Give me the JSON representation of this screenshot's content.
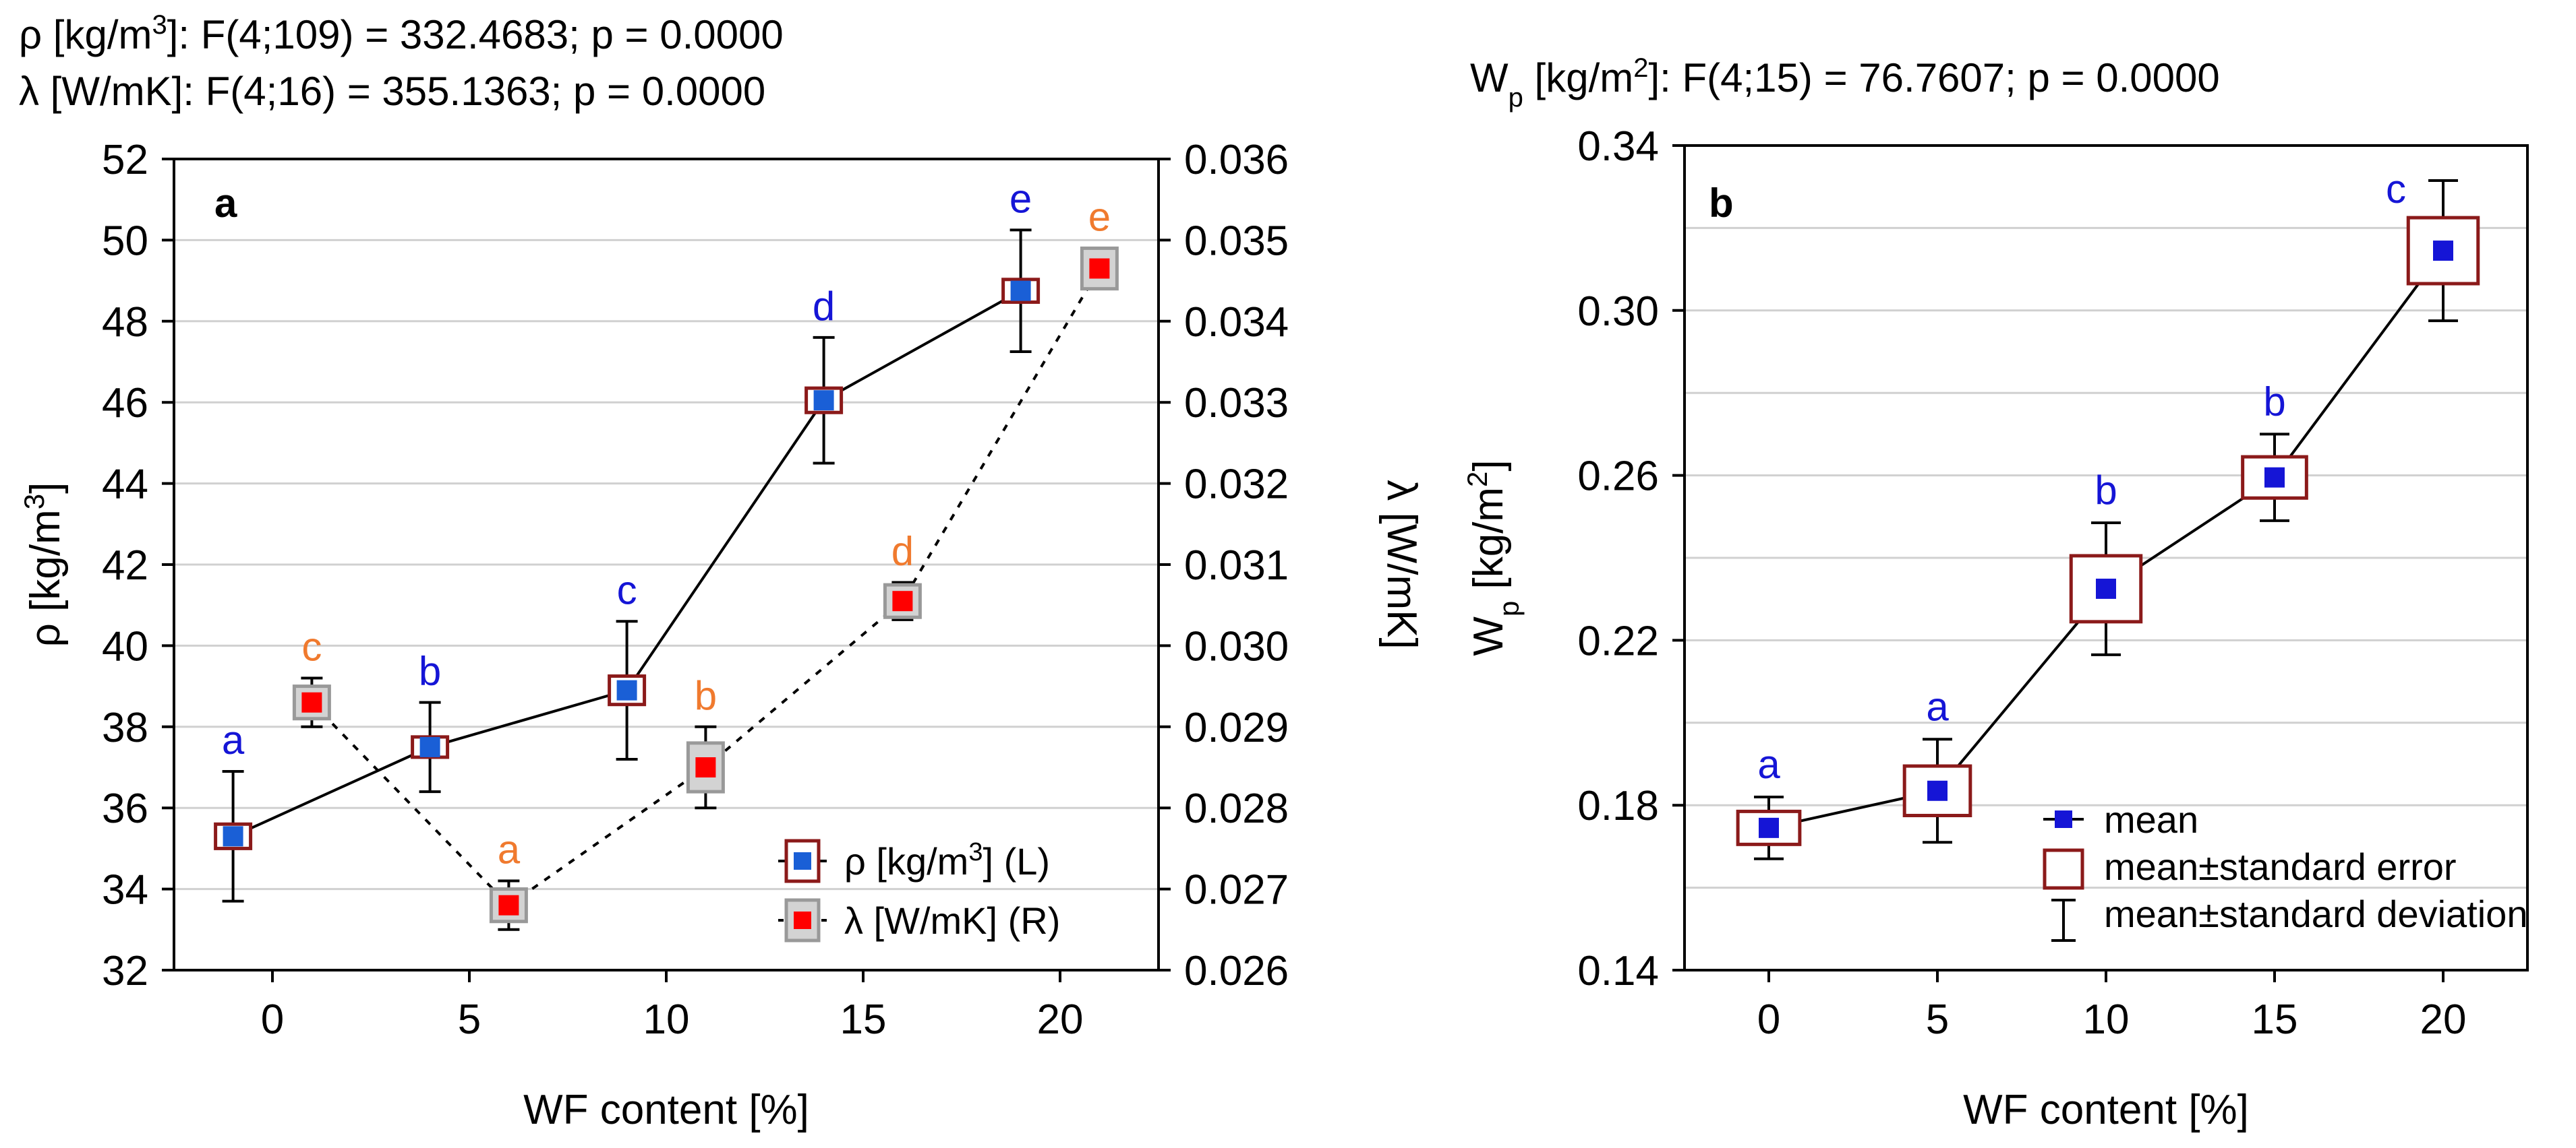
{
  "chart_data": [
    {
      "panel": "a",
      "type": "scatter",
      "stats": [
        {
          "sym": "ρ",
          "unit_pre": " [kg/m",
          "sup": "3",
          "unit_post": "]: ",
          "text": "F(4;109) = 332.4683; p = 0.0000"
        },
        {
          "sym": "λ",
          "unit_pre": " [W/mK]: ",
          "sup": "",
          "unit_post": "",
          "text": "F(4;16) = 355.1363; p = 0.0000"
        }
      ],
      "xlabel": "WF content [%]",
      "ylabel_left": {
        "pre": "ρ [kg/m",
        "sup": "3",
        "post": "]"
      },
      "ylabel_right": "λ [W/mK]",
      "xlim": [
        -2.5,
        22.5
      ],
      "xticks": [
        "0",
        "5",
        "10",
        "15",
        "20"
      ],
      "xtick_values": [
        0,
        5,
        10,
        15,
        20
      ],
      "ylim_left": [
        32,
        52
      ],
      "yticks_left": [
        "32",
        "34",
        "36",
        "38",
        "40",
        "42",
        "44",
        "46",
        "48",
        "50",
        "52"
      ],
      "ylim_right": [
        0.026,
        0.036
      ],
      "yticks_right": [
        "0.026",
        "0.027",
        "0.028",
        "0.029",
        "0.030",
        "0.031",
        "0.032",
        "0.033",
        "0.034",
        "0.035",
        "0.036"
      ],
      "series": [
        {
          "name": "ρ [kg/m³] (L)",
          "legend_pre": "ρ [kg/m",
          "legend_sup": "3",
          "legend_post": "] (L)",
          "axis": "left",
          "x": [
            -1,
            4,
            9,
            14,
            19
          ],
          "mean": [
            35.3,
            37.5,
            38.9,
            46.05,
            48.75
          ],
          "se": [
            0.3,
            0.25,
            0.35,
            0.3,
            0.28
          ],
          "sd": [
            1.6,
            1.1,
            1.7,
            1.55,
            1.5
          ],
          "groups": [
            "a",
            "b",
            "c",
            "d",
            "e"
          ],
          "color": "#1a5fd6",
          "box_fill": "#ffffff",
          "box_stroke": "#8b1a1a",
          "line": "solid"
        },
        {
          "name": "λ [W/mK] (R)",
          "legend_pre": "λ [W/mK] (R)",
          "legend_sup": "",
          "legend_post": "",
          "axis": "right",
          "x": [
            1,
            6,
            11,
            16,
            21
          ],
          "mean": [
            0.0293,
            0.0268,
            0.0285,
            0.03055,
            0.03465
          ],
          "se": [
            0.0002,
            0.0002,
            0.0003,
            0.0002,
            0.00025
          ],
          "sd": [
            0.0003,
            0.0003,
            0.0005,
            0.00023,
            0.00025
          ],
          "groups": [
            "c",
            "a",
            "b",
            "d",
            "e"
          ],
          "color": "#ff0000",
          "box_fill": "#d3d3d3",
          "box_stroke": "#999999",
          "line": "dotted"
        }
      ]
    },
    {
      "panel": "b",
      "type": "scatter",
      "stats": [
        {
          "sym": "W",
          "sub": "p",
          "unit_pre": " [kg/m",
          "sup": "2",
          "unit_post": "]:   ",
          "text": "F(4;15) = 76.7607; p = 0.0000"
        }
      ],
      "xlabel": "WF content [%]",
      "ylabel": {
        "pre": "W",
        "sub": "p",
        "mid": " [kg/m",
        "sup": "2",
        "post": "]"
      },
      "xlim": [
        -2.5,
        22.5
      ],
      "xticks": [
        "0",
        "5",
        "10",
        "15",
        "20"
      ],
      "xtick_values": [
        0,
        5,
        10,
        15,
        20
      ],
      "ylim": [
        0.14,
        0.34
      ],
      "yticks": [
        "0.14",
        "0.18",
        "0.22",
        "0.26",
        "0.30",
        "0.34"
      ],
      "ytick_values": [
        0.14,
        0.18,
        0.22,
        0.26,
        0.3,
        0.34
      ],
      "series": [
        {
          "name": "Wp",
          "x": [
            0,
            5,
            10,
            15,
            20
          ],
          "mean": [
            0.1745,
            0.1835,
            0.2325,
            0.2595,
            0.3145
          ],
          "se": [
            0.004,
            0.006,
            0.008,
            0.005,
            0.008
          ],
          "sd": [
            0.0075,
            0.0125,
            0.016,
            0.0105,
            0.017
          ],
          "groups": [
            "a",
            "a",
            "b",
            "b",
            "c"
          ],
          "color": "#1515d6",
          "box_fill": "none",
          "box_stroke": "#8b1a1a",
          "line": "solid"
        }
      ],
      "legend": [
        "mean",
        "mean±standard error",
        "mean±standard deviation"
      ]
    }
  ]
}
